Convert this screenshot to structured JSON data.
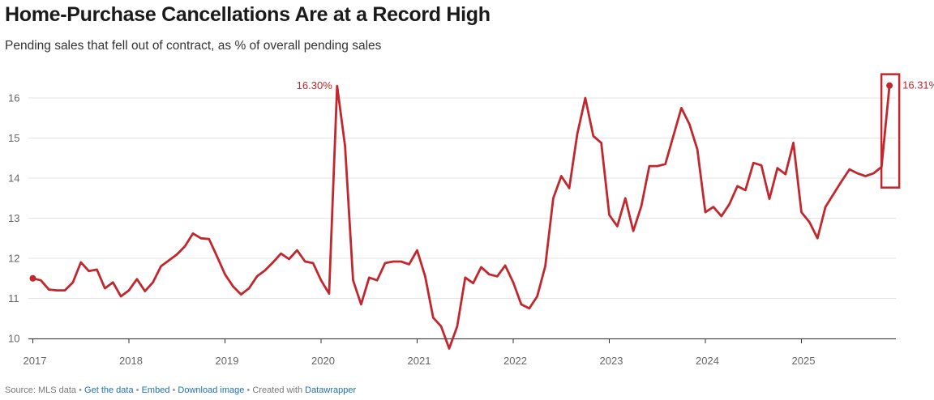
{
  "title": "Home-Purchase Cancellations Are at a Record High",
  "subtitle": "Pending sales that fell out of contract, as % of overall pending sales",
  "footer": {
    "source": "Source: MLS data",
    "get_data": "Get the data",
    "embed": "Embed",
    "download": "Download image",
    "created_with": "Created with",
    "datawrapper": "Datawrapper",
    "separator": "•"
  },
  "colors": {
    "line": "#c1272d",
    "grid": "#e3e3e3",
    "link": "#1f6fb2"
  },
  "chart_data": {
    "type": "line",
    "title": "Home-Purchase Cancellations Are at a Record High",
    "subtitle": "Pending sales that fell out of contract, as % of overall pending sales",
    "xlabel": "",
    "ylabel": "",
    "ylim": [
      10,
      16
    ],
    "y_ticks": [
      "10",
      "11",
      "12",
      "13",
      "14",
      "15",
      "16"
    ],
    "x_tick_labels": [
      "2017",
      "2018",
      "2019",
      "2020",
      "2021",
      "2022",
      "2023",
      "2024",
      "2025"
    ],
    "grid": "horizontal",
    "x_start": "2017-01",
    "frequency": "monthly",
    "series": [
      {
        "values": [
          11.5,
          11.45,
          11.22,
          11.2,
          11.2,
          11.4,
          11.9,
          11.68,
          11.72,
          11.25,
          11.4,
          11.05,
          11.2,
          11.48,
          11.18,
          11.4,
          11.8,
          11.95,
          12.1,
          12.3,
          12.62,
          12.5,
          12.48,
          12.05,
          11.6,
          11.3,
          11.1,
          11.25,
          11.55,
          11.7,
          11.9,
          12.12,
          11.98,
          12.2,
          11.92,
          11.88,
          11.45,
          11.12,
          16.3,
          14.8,
          11.45,
          10.85,
          11.52,
          11.45,
          11.88,
          11.92,
          11.92,
          11.85,
          12.2,
          11.55,
          10.52,
          10.3,
          9.75,
          10.3,
          11.52,
          11.38,
          11.78,
          11.6,
          11.55,
          11.82,
          11.4,
          10.85,
          10.75,
          11.05,
          11.8,
          13.5,
          14.05,
          13.75,
          15.1,
          16.0,
          15.05,
          14.88,
          13.08,
          12.8,
          13.5,
          12.68,
          13.3,
          14.3,
          14.3,
          14.35,
          15.05,
          15.75,
          15.35,
          14.72,
          13.15,
          13.28,
          13.05,
          13.35,
          13.8,
          13.7,
          14.38,
          14.32,
          13.48,
          14.25,
          14.1,
          14.88,
          13.15,
          12.9,
          12.5,
          13.28,
          13.6,
          13.92,
          14.22,
          14.12,
          14.05,
          14.12,
          14.28,
          16.31
        ]
      }
    ],
    "annotations": [
      {
        "label": "16.30%",
        "x": "2020-03",
        "y": 16.3
      },
      {
        "label": "16.31%",
        "x": "2025-12",
        "y": 16.31,
        "highlight_box": true
      }
    ]
  }
}
